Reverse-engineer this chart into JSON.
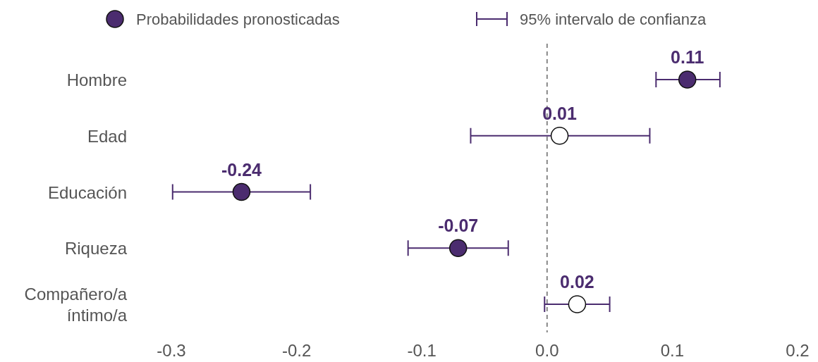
{
  "chart_data": {
    "type": "scatter",
    "orientation": "horizontal",
    "categories": [
      "Hombre",
      "Edad",
      "Educación",
      "Riqueza",
      "Compañero/a íntimo/a"
    ],
    "series": [
      {
        "name": "Probabilidades pronosticadas",
        "color": "#4b2c6f",
        "colors": [
          "#4b2c6f",
          "#ffffff",
          "#4b2c6f",
          "#4b2c6f",
          "#ffffff"
        ],
        "values": [
          0.112,
          0.01,
          -0.244,
          -0.071,
          0.024
        ],
        "errors": [
          [
            0.087,
            0.138
          ],
          [
            -0.061,
            0.082
          ],
          [
            -0.299,
            -0.189
          ],
          [
            -0.111,
            -0.031
          ],
          [
            -0.002,
            0.05
          ]
        ],
        "value_labels": [
          "0.11",
          "0.01",
          "-0.24",
          "-0.07",
          "0.02"
        ]
      }
    ],
    "annotations": [
      "95% intervalo de confianza"
    ],
    "xlim": [
      -0.3,
      0.2
    ],
    "xticks": [
      -0.3,
      -0.2,
      -0.1,
      {
        "value": 0,
        "label": "0.0"
      },
      0.1,
      0.2
    ],
    "ref_lines": [
      {
        "axis": "x",
        "value": 0,
        "color": "#888888",
        "line_style": "dashed"
      }
    ],
    "marker": "circle",
    "legend": "top",
    "grid": false
  }
}
